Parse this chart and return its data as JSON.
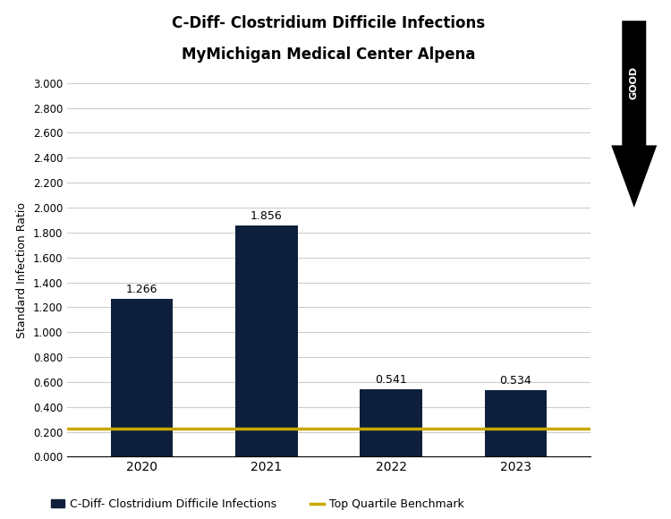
{
  "title_line1": "C-Diff- Clostridium Difficile Infections",
  "title_line2": "MyMichigan Medical Center Alpena",
  "categories": [
    "2020",
    "2021",
    "2022",
    "2023"
  ],
  "values": [
    1.266,
    1.856,
    0.541,
    0.534
  ],
  "bar_color": "#0d1f3c",
  "benchmark_value": 0.228,
  "benchmark_color": "#c9a800",
  "ylabel": "Standard Infection Ratio",
  "ylim": [
    0.0,
    3.0
  ],
  "yticks": [
    0.0,
    0.2,
    0.4,
    0.6,
    0.8,
    1.0,
    1.2,
    1.4,
    1.6,
    1.8,
    2.0,
    2.2,
    2.4,
    2.6,
    2.8,
    3.0
  ],
  "ytick_labels": [
    "0.000",
    "0.200",
    "0.400",
    "0.600",
    "0.800",
    "1.000",
    "1.200",
    "1.400",
    "1.600",
    "1.800",
    "2.000",
    "2.200",
    "2.400",
    "2.600",
    "2.800",
    "3.000"
  ],
  "legend_bar_label": "C-Diff- Clostridium Difficile Infections",
  "legend_line_label": "Top Quartile Benchmark",
  "bar_width": 0.5,
  "annotation_fontsize": 9,
  "background_color": "#ffffff",
  "grid_color": "#cccccc",
  "arrow_label": "GOOD",
  "title_fontsize": 12,
  "ylabel_fontsize": 9
}
